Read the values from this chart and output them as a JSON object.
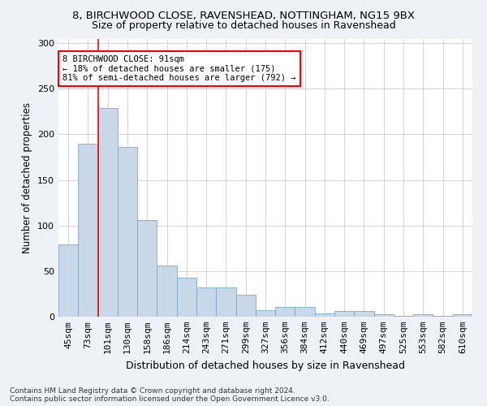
{
  "title1": "8, BIRCHWOOD CLOSE, RAVENSHEAD, NOTTINGHAM, NG15 9BX",
  "title2": "Size of property relative to detached houses in Ravenshead",
  "xlabel": "Distribution of detached houses by size in Ravenshead",
  "ylabel": "Number of detached properties",
  "footer1": "Contains HM Land Registry data © Crown copyright and database right 2024.",
  "footer2": "Contains public sector information licensed under the Open Government Licence v3.0.",
  "categories": [
    "45sqm",
    "73sqm",
    "101sqm",
    "130sqm",
    "158sqm",
    "186sqm",
    "214sqm",
    "243sqm",
    "271sqm",
    "299sqm",
    "327sqm",
    "356sqm",
    "384sqm",
    "412sqm",
    "440sqm",
    "469sqm",
    "497sqm",
    "525sqm",
    "553sqm",
    "582sqm",
    "610sqm"
  ],
  "values": [
    79,
    190,
    229,
    186,
    106,
    56,
    43,
    32,
    32,
    24,
    7,
    11,
    11,
    4,
    6,
    6,
    3,
    1,
    3,
    1,
    3
  ],
  "bar_color": "#c8d8e8",
  "bar_edge_color": "#7aaac8",
  "red_line_bar_index": 1,
  "property_label": "8 BIRCHWOOD CLOSE: 91sqm",
  "pct_smaller": 18,
  "n_smaller": 175,
  "pct_larger": 81,
  "n_larger": 792,
  "ylim": [
    0,
    305
  ],
  "yticks": [
    0,
    50,
    100,
    150,
    200,
    250,
    300
  ],
  "bg_color": "#eef2f7",
  "plot_bg_color": "#ffffff",
  "title1_fontsize": 9.5,
  "title2_fontsize": 9.0,
  "ylabel_fontsize": 8.5,
  "xlabel_fontsize": 9.0,
  "tick_fontsize": 8.0,
  "ann_fontsize": 7.5,
  "footer_fontsize": 6.5
}
